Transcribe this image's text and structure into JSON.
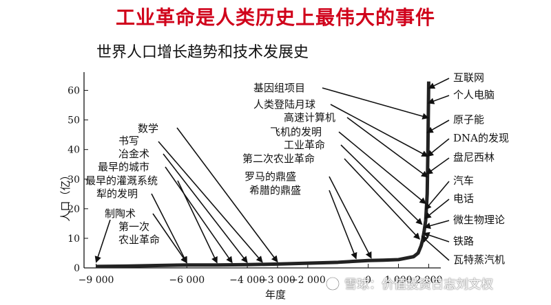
{
  "headline": "工业革命是人类历史上最伟大的事件",
  "watermark": "雪球：价值投资日志刘文权",
  "chart_data": {
    "type": "line",
    "title": "世界人口增长趋势和技术发展史",
    "xlabel": "年度",
    "ylabel": "人口（亿）",
    "xlim": [
      -9400,
      2400
    ],
    "ylim": [
      0,
      65
    ],
    "x_ticks": [
      -9000,
      -6000,
      -4000,
      -3000,
      -2000,
      0,
      1000,
      2000
    ],
    "x_tick_labels": [
      "−9 000",
      "−6 000",
      "−4 000",
      "−3 000",
      "−2 000",
      "0",
      "1 000",
      "2 000"
    ],
    "y_ticks": [
      0,
      10,
      20,
      30,
      40,
      50,
      60
    ],
    "series": [
      {
        "x": [
          -9000,
          -8000,
          -7000,
          -6000,
          -5000,
          -4000,
          -3000,
          -2000,
          -1000,
          0,
          500,
          1000,
          1500,
          1650,
          1750,
          1800,
          1850,
          1900,
          1950,
          1975,
          2000
        ],
        "values": [
          0.5,
          0.6,
          0.8,
          1,
          1,
          1.1,
          1.3,
          1.6,
          1.9,
          2.5,
          2.6,
          2.8,
          3.8,
          5,
          7.5,
          9.5,
          12.5,
          16,
          25,
          41,
          63
        ]
      }
    ],
    "annotations": [
      {
        "label": "数学",
        "point": [
          -3000,
          1.3
        ]
      },
      {
        "label": "书写",
        "point": [
          -3500,
          1.2
        ]
      },
      {
        "label": "冶金术",
        "point": [
          -4000,
          1.1
        ]
      },
      {
        "label": "最早的城市",
        "point": [
          -4500,
          1.05
        ]
      },
      {
        "label": "最早的灌溉系统",
        "point": [
          -5000,
          1.0
        ]
      },
      {
        "label": "犁的发明",
        "point": [
          -6000,
          1.0
        ]
      },
      {
        "label": "制陶术",
        "point": [
          -6000,
          1.0
        ]
      },
      {
        "label": "第一次",
        "point": [
          -9000,
          1.2
        ]
      },
      {
        "label": "农业革命",
        "point": [
          -9000,
          1.2
        ]
      },
      {
        "label": "基因组项目",
        "point": [
          1990,
          50
        ]
      },
      {
        "label": "人类登陆月球",
        "point": [
          1969,
          37
        ]
      },
      {
        "label": "高速计算机",
        "point": [
          1960,
          30
        ]
      },
      {
        "label": "飞机的发明",
        "point": [
          1903,
          21
        ]
      },
      {
        "label": "工业革命",
        "point": [
          1780,
          14
        ]
      },
      {
        "label": "第二次农业革命",
        "point": [
          1700,
          9
        ]
      },
      {
        "label": "罗马的鼎盛",
        "point": [
          100,
          2.6
        ]
      },
      {
        "label": "希腊的鼎盛",
        "point": [
          -400,
          2.4
        ]
      },
      {
        "label": "互联网",
        "point": [
          2000,
          60
        ]
      },
      {
        "label": "个人电脑",
        "point": [
          1981,
          55
        ]
      },
      {
        "label": "原子能",
        "point": [
          1945,
          45
        ]
      },
      {
        "label": "DNA的发现",
        "point": [
          1953,
          37
        ]
      },
      {
        "label": "盘尼西林",
        "point": [
          1928,
          31
        ]
      },
      {
        "label": "汽车",
        "point": [
          1885,
          19
        ]
      },
      {
        "label": "电话",
        "point": [
          1876,
          16
        ]
      },
      {
        "label": "微生物理论",
        "point": [
          1860,
          13
        ]
      },
      {
        "label": "铁路",
        "point": [
          1830,
          11
        ]
      },
      {
        "label": "瓦特蒸汽机",
        "point": [
          1769,
          10
        ]
      }
    ]
  }
}
